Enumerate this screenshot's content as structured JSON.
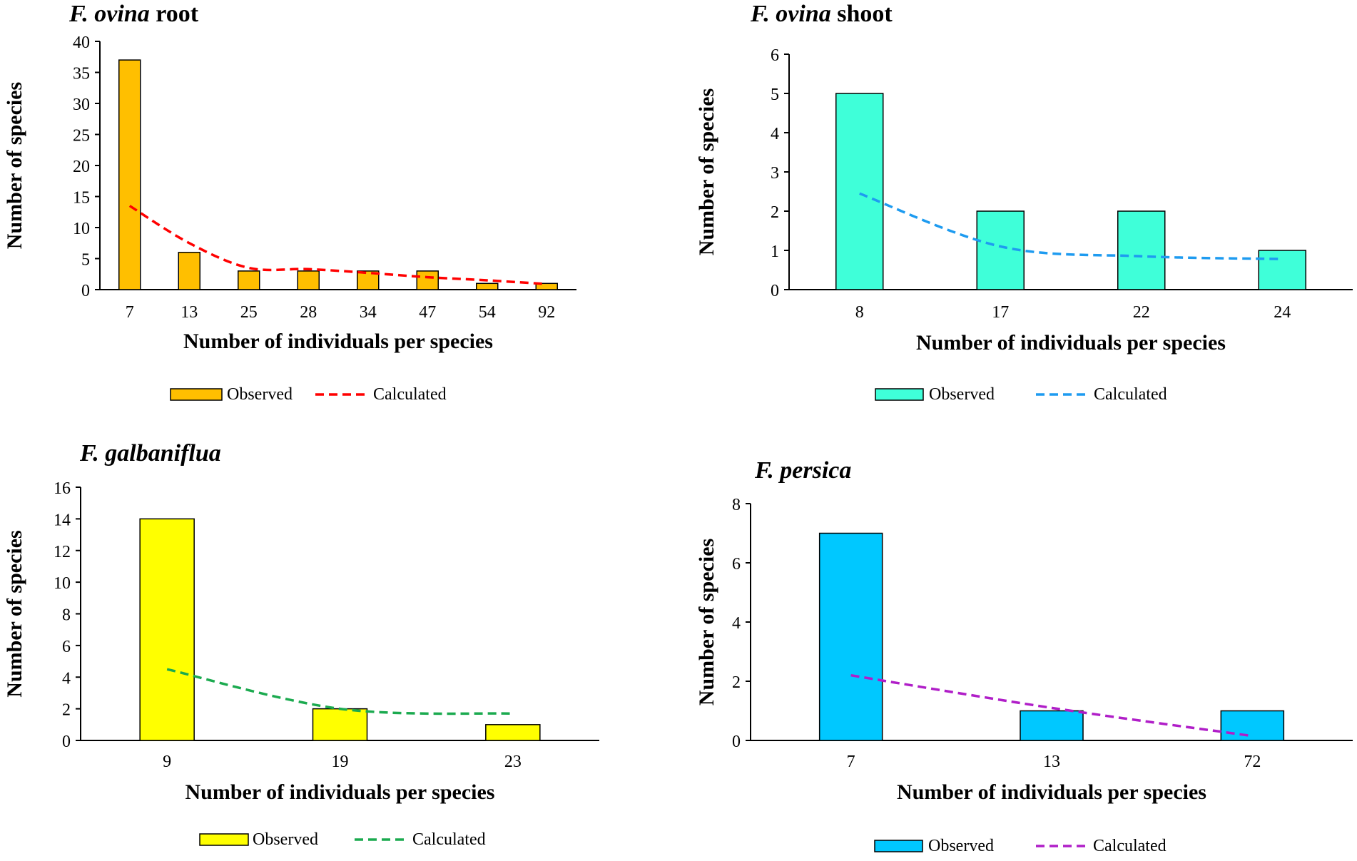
{
  "chart_data": [
    {
      "type": "bar",
      "title": {
        "italic": "F. ovina",
        "plain": " root"
      },
      "xlabel": "Number of individuals per species",
      "ylabel": "Number of species",
      "categories": [
        "7",
        "13",
        "25",
        "28",
        "34",
        "47",
        "54",
        "92"
      ],
      "ylim": [
        0,
        40
      ],
      "yticks": [
        0,
        5,
        10,
        15,
        20,
        25,
        30,
        35,
        40
      ],
      "series": [
        {
          "name": "Observed",
          "kind": "bar",
          "values": [
            37,
            6,
            3,
            3,
            3,
            3,
            1,
            1
          ]
        },
        {
          "name": "Calculated",
          "kind": "dashed-line",
          "values": [
            13.5,
            7.5,
            3.5,
            3.3,
            2.7,
            2.0,
            1.5,
            0.9
          ]
        }
      ],
      "colors": {
        "bar": "#FFBF00",
        "line": "#FF0000"
      },
      "legend": "bottom-center"
    },
    {
      "type": "bar",
      "title": {
        "italic": "F. ovina",
        "plain": " shoot"
      },
      "xlabel": "Number of individuals per species",
      "ylabel": "Number of species",
      "categories": [
        "8",
        "17",
        "22",
        "24"
      ],
      "ylim": [
        0,
        6
      ],
      "yticks": [
        0,
        1,
        2,
        3,
        4,
        5,
        6
      ],
      "series": [
        {
          "name": "Observed",
          "kind": "bar",
          "values": [
            5,
            2,
            2,
            1
          ]
        },
        {
          "name": "Calculated",
          "kind": "dashed-line",
          "values": [
            2.45,
            1.1,
            0.85,
            0.78
          ]
        }
      ],
      "colors": {
        "bar": "#3FFFD9",
        "line": "#1E9BF0"
      },
      "legend": "bottom-center"
    },
    {
      "type": "bar",
      "title": {
        "italic": "F. galbaniflua",
        "plain": ""
      },
      "xlabel": "Number of individuals per species",
      "ylabel": "Number of species",
      "categories": [
        "9",
        "19",
        "23"
      ],
      "ylim": [
        0,
        16
      ],
      "yticks": [
        0,
        2,
        4,
        6,
        8,
        10,
        12,
        14,
        16
      ],
      "series": [
        {
          "name": "Observed",
          "kind": "bar",
          "values": [
            14,
            2,
            1
          ]
        },
        {
          "name": "Calculated",
          "kind": "dashed-line",
          "values": [
            4.5,
            2.0,
            1.7
          ]
        }
      ],
      "colors": {
        "bar": "#FFFF00",
        "line": "#1BAA4F"
      },
      "legend": "bottom-center"
    },
    {
      "type": "bar",
      "title": {
        "italic": "F. persica",
        "plain": ""
      },
      "xlabel": "Number of individuals per species",
      "ylabel": "Number of species",
      "categories": [
        "7",
        "13",
        "72"
      ],
      "ylim": [
        0,
        8
      ],
      "yticks": [
        0,
        2,
        4,
        6,
        8
      ],
      "series": [
        {
          "name": "Observed",
          "kind": "bar",
          "values": [
            7,
            1,
            1
          ]
        },
        {
          "name": "Calculated",
          "kind": "dashed-line",
          "values": [
            2.2,
            1.1,
            0.15
          ]
        }
      ],
      "colors": {
        "bar": "#00C8FF",
        "line": "#B01EC8"
      },
      "legend": "bottom-center"
    }
  ]
}
